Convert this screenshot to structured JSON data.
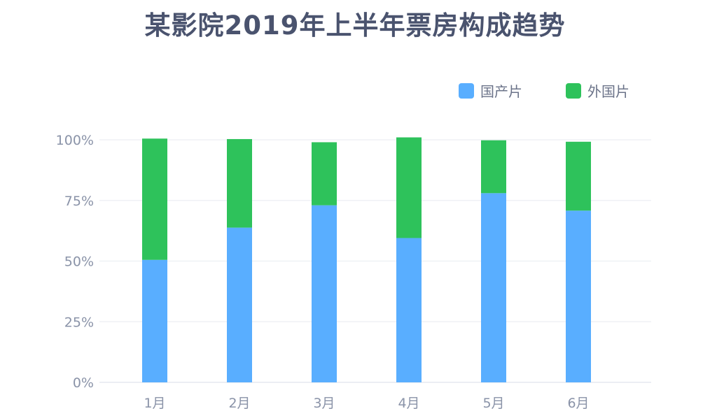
{
  "chart_data": {
    "type": "bar",
    "stacked": true,
    "title": "某影院2019年上半年票房构成趋势",
    "categories": [
      "1月",
      "2月",
      "3月",
      "4月",
      "5月",
      "6月"
    ],
    "series": [
      {
        "name": "国产片",
        "values": [
          50.5,
          63.8,
          73,
          59.5,
          78,
          70.8
        ],
        "color": "#59aeff"
      },
      {
        "name": "外国片",
        "values": [
          50,
          36.5,
          26,
          41.5,
          21.8,
          28.4
        ],
        "color": "#2ec25b"
      }
    ],
    "yticks": [
      "0%",
      "25%",
      "50%",
      "75%",
      "100%"
    ],
    "ylim": [
      0,
      100
    ],
    "grid": true,
    "legend_position": "top-right"
  }
}
